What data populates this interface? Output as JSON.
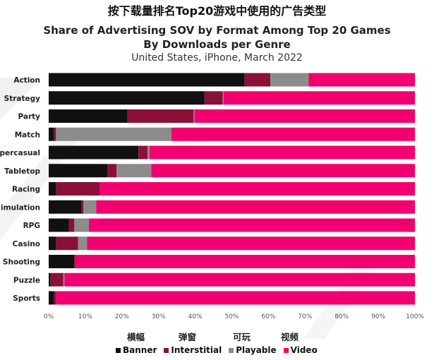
{
  "title_cn": "按下载量排名Top20游戏中使用的广告类型",
  "title_en_line1": "Share of Advertising SOV by Format Among Top 20 Games",
  "title_en_line2": "By Downloads per Genre",
  "subtitle": "United States, iPhone, March 2022",
  "legend_cn": [
    "横幅",
    "弹窗",
    "可玩",
    "视频"
  ],
  "chart_data": {
    "type": "bar",
    "orientation": "horizontal",
    "stacked": true,
    "categories": [
      "Action",
      "Strategy",
      "Party",
      "Match",
      "Hypercasual",
      "Tabletop",
      "Racing",
      "Simulation",
      "RPG",
      "Casino",
      "Shooting",
      "Puzzle",
      "Sports"
    ],
    "series": [
      {
        "name": "Banner",
        "color": "#111111",
        "values": [
          53.5,
          42.5,
          21.5,
          1.5,
          24.5,
          16.0,
          2.0,
          9.0,
          5.5,
          2.0,
          7.0,
          0.5,
          1.5
        ]
      },
      {
        "name": "Interstitial",
        "color": "#8b1038",
        "values": [
          7.0,
          5.0,
          18.0,
          0.5,
          2.5,
          2.5,
          12.0,
          0.5,
          1.5,
          6.0,
          0.3,
          3.5,
          0.5
        ]
      },
      {
        "name": "Playable",
        "color": "#8c8c8c",
        "values": [
          10.5,
          0.3,
          0.3,
          31.5,
          0.5,
          9.5,
          0.0,
          3.5,
          4.0,
          2.5,
          0.0,
          0.3,
          0.0
        ]
      },
      {
        "name": "Video",
        "color": "#f2006f",
        "values": [
          29.0,
          52.2,
          60.2,
          66.5,
          72.5,
          72.0,
          86.0,
          87.0,
          89.0,
          89.5,
          92.7,
          95.7,
          98.0
        ]
      }
    ],
    "xlim": [
      0,
      100
    ],
    "x_ticks": [
      "0%",
      "10%",
      "20%",
      "30%",
      "40%",
      "50%",
      "60%",
      "70%",
      "80%",
      "90%",
      "100%"
    ],
    "grid": false,
    "legend_position": "bottom"
  }
}
